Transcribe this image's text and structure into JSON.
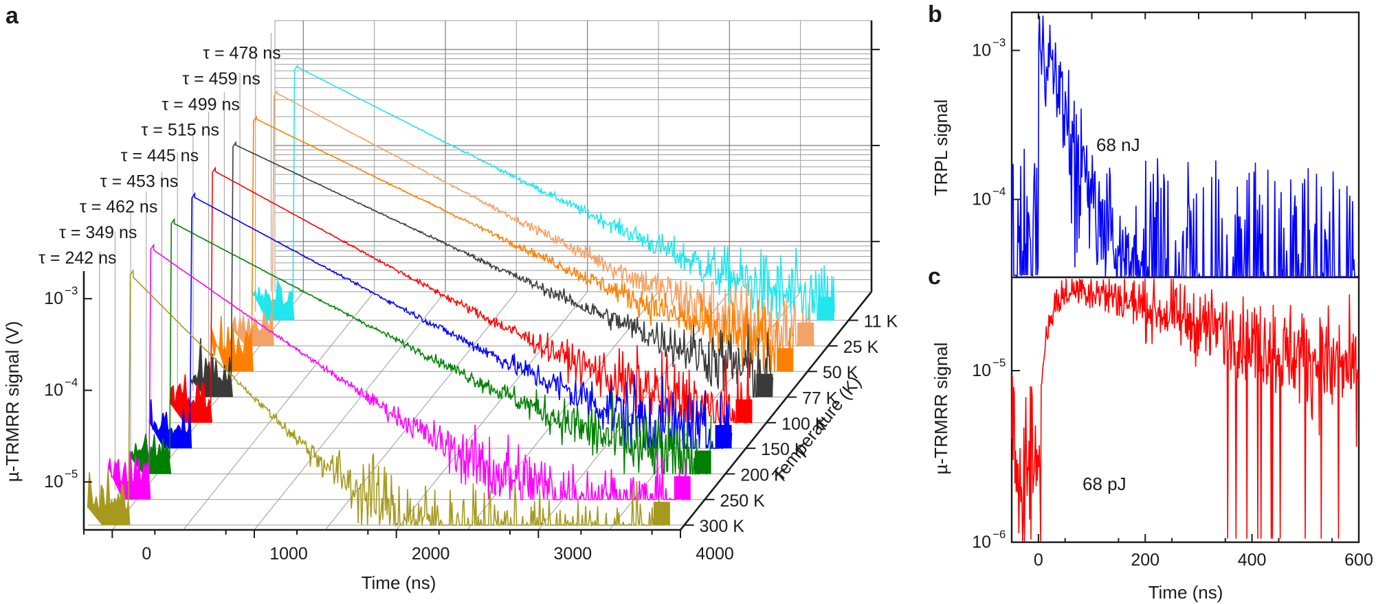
{
  "chart_data": [
    {
      "panel": "a",
      "type": "line",
      "subtype": "3d-waterfall",
      "xlabel": "Time (ns)",
      "ylabel": "µ-TRMRR signal (V)",
      "zlabel": "Temperature (K)",
      "x_ticks": [
        "0",
        "1000",
        "2000",
        "3000",
        "4000"
      ],
      "xlim": [
        -200,
        4000
      ],
      "y_ticks": [
        "10",
        "10",
        "10"
      ],
      "y_tick_exponents": [
        "−3",
        "−4",
        "−5"
      ],
      "y_scale": "log",
      "ylim": [
        3e-06,
        0.002
      ],
      "z_ticks": [
        "11 K",
        "25 K",
        "50 K",
        "77 K",
        "100 K",
        "150 K",
        "200 K",
        "250 K",
        "300 K"
      ],
      "series": [
        {
          "name": "11 K",
          "temperature_K": 11,
          "tau_label": "τ = 478 ns",
          "tau_ns": 478,
          "color": "#22e6ee"
        },
        {
          "name": "25 K",
          "temperature_K": 25,
          "tau_label": "τ = 459 ns",
          "tau_ns": 459,
          "color": "#f2a368"
        },
        {
          "name": "50 K",
          "temperature_K": 50,
          "tau_label": "τ = 499 ns",
          "tau_ns": 499,
          "color": "#ff8000"
        },
        {
          "name": "77 K",
          "temperature_K": 77,
          "tau_label": "τ = 515 ns",
          "tau_ns": 515,
          "color": "#3a3a3a"
        },
        {
          "name": "100 K",
          "temperature_K": 100,
          "tau_label": "τ = 445 ns",
          "tau_ns": 445,
          "color": "#ff0000"
        },
        {
          "name": "150 K",
          "temperature_K": 150,
          "tau_label": "τ = 453 ns",
          "tau_ns": 453,
          "color": "#0000ff"
        },
        {
          "name": "200 K",
          "temperature_K": 200,
          "tau_label": "τ = 462 ns",
          "tau_ns": 462,
          "color": "#008000"
        },
        {
          "name": "250 K",
          "temperature_K": 250,
          "tau_label": "τ = 349 ns",
          "tau_ns": 349,
          "color": "#ff00ff"
        },
        {
          "name": "300 K",
          "temperature_K": 300,
          "tau_label": "τ = 242 ns",
          "tau_ns": 242,
          "color": "#a59a1e"
        }
      ]
    },
    {
      "panel": "b",
      "type": "line",
      "xlabel": "Time (ns)",
      "ylabel": "TRPL signal",
      "y_scale": "log",
      "ylim": [
        3e-05,
        0.0018
      ],
      "y_ticks": [
        "10",
        "10"
      ],
      "y_tick_exponents": [
        "−3",
        "−4"
      ],
      "xlim": [
        -50,
        600
      ],
      "annotation": "68 nJ",
      "color": "#0000ff"
    },
    {
      "panel": "c",
      "type": "line",
      "xlabel": "Time (ns)",
      "ylabel": "µ-TRMRR signal",
      "y_scale": "log",
      "ylim": [
        1e-06,
        3.5e-05
      ],
      "y_ticks": [
        "10",
        "10"
      ],
      "y_tick_exponents": [
        "−5",
        "−6"
      ],
      "x_ticks": [
        "0",
        "200",
        "400",
        "600"
      ],
      "xlim": [
        -50,
        600
      ],
      "annotation": "68 pJ",
      "color": "#ff0000"
    }
  ],
  "panel_labels": {
    "a": "a",
    "b": "b",
    "c": "c"
  }
}
